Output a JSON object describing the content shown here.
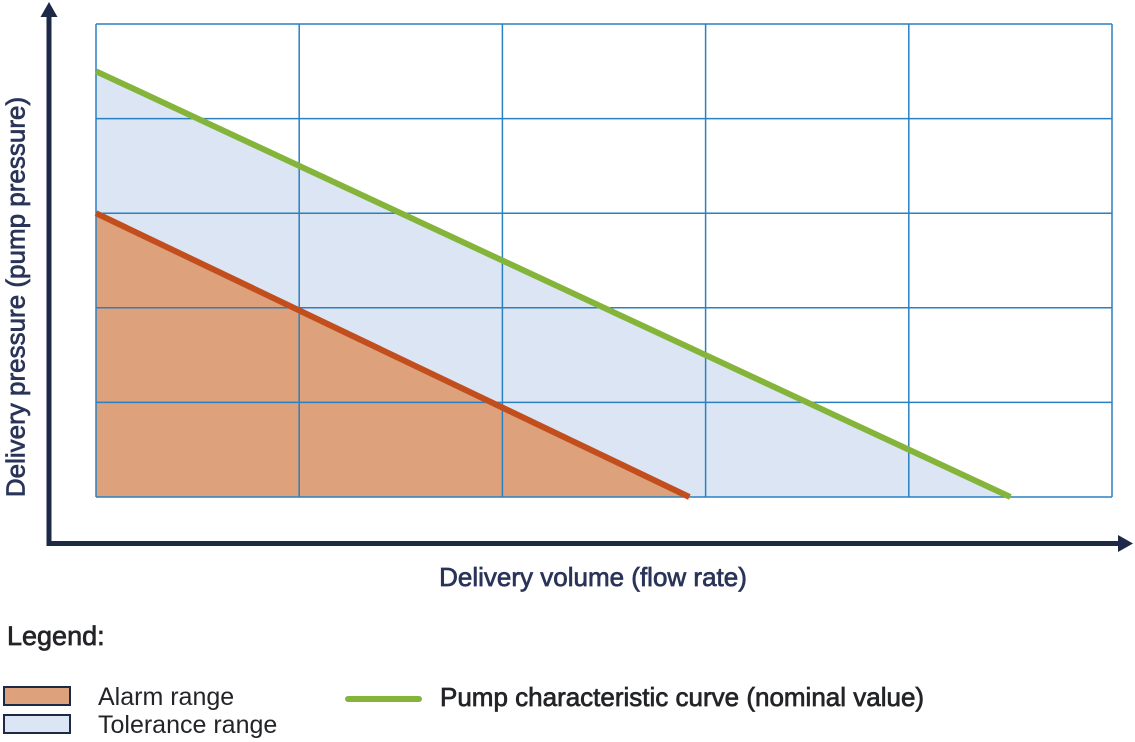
{
  "colors": {
    "navy": "#1d2a47",
    "axis_text": "#2a3459",
    "legend_text": "#232428",
    "grid_blue": "#2a80c1",
    "green": "#85b43a",
    "red": "#c34e1d",
    "alarm_fill": "#dda17c",
    "tolerance_fill": "#dbe5f4"
  },
  "legend": {
    "title": "Legend:",
    "items": [
      {
        "id": "alarm",
        "label": "Alarm range"
      },
      {
        "id": "tolerance",
        "label": "Tolerance range"
      },
      {
        "id": "pump-curve",
        "label": "Pump characteristic curve (nominal value)"
      }
    ]
  },
  "chart_data": {
    "type": "area",
    "title": "",
    "xlabel": "Delivery volume (flow rate)",
    "ylabel": "Delivery pressure (pump pressure)",
    "xlim": [
      0,
      5
    ],
    "ylim": [
      0,
      5
    ],
    "x_gridlines": 5,
    "y_gridlines": 5,
    "grid": true,
    "tick_labels": "none (qualitative axes)",
    "series": [
      {
        "id": "pump-curve",
        "name": "Pump characteristic curve (nominal value)",
        "color_key": "green",
        "points": [
          [
            0,
            4.5
          ],
          [
            4.5,
            0
          ]
        ]
      },
      {
        "id": "alarm-boundary",
        "name": "Alarm range upper boundary",
        "color_key": "red",
        "points": [
          [
            0,
            3
          ],
          [
            2.92,
            0
          ]
        ]
      }
    ],
    "regions": [
      {
        "id": "tolerance",
        "name": "Tolerance range",
        "color_key": "tolerance_fill",
        "polygon": [
          [
            0,
            4.5
          ],
          [
            4.5,
            0
          ],
          [
            2.92,
            0
          ],
          [
            0,
            3
          ]
        ]
      },
      {
        "id": "alarm",
        "name": "Alarm range",
        "color_key": "alarm_fill",
        "polygon": [
          [
            0,
            3
          ],
          [
            2.92,
            0
          ],
          [
            0,
            0
          ]
        ]
      }
    ]
  }
}
